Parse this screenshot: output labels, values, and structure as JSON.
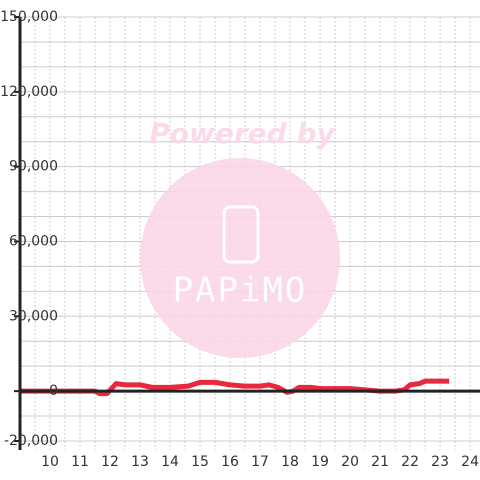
{
  "chart_data": {
    "type": "line",
    "x": [
      9.0,
      11.5,
      11.65,
      11.9,
      12.2,
      12.5,
      13.0,
      13.4,
      14.0,
      14.6,
      15.0,
      15.5,
      16.0,
      16.5,
      17.0,
      17.3,
      17.6,
      17.9,
      18.1,
      18.3,
      18.7,
      19.0,
      20.0,
      20.5,
      21.0,
      21.5,
      21.8,
      22.0,
      22.3,
      22.5,
      23.0,
      23.3
    ],
    "series": [
      {
        "color": "#e8283c",
        "values": [
          0,
          0,
          -1000,
          -1000,
          3000,
          2500,
          2500,
          1500,
          1500,
          2000,
          3500,
          3500,
          2500,
          2000,
          2000,
          2500,
          1500,
          -500,
          0,
          1500,
          1500,
          1000,
          1000,
          500,
          0,
          0,
          500,
          2500,
          3000,
          4000,
          4000,
          4000
        ]
      }
    ],
    "xlim": [
      9,
      24.33
    ],
    "xticks": [
      10,
      11,
      12,
      13,
      14,
      15,
      16,
      17,
      18,
      19,
      20,
      21,
      22,
      23,
      24
    ],
    "x_minor_ticks": [
      9.5,
      10.5,
      11.5,
      12.5,
      13.5,
      14.5,
      15.5,
      16.5,
      17.5,
      18.5,
      19.5,
      20.5,
      21.5,
      22.5,
      23.5
    ],
    "ylim": [
      -20000,
      150000
    ],
    "yticks": [
      {
        "value": -20000,
        "label": "-20,000"
      },
      0,
      {
        "value": 30000,
        "label": "30,000"
      },
      {
        "value": 60000,
        "label": "60,000"
      },
      {
        "value": 90000,
        "label": "90,000"
      },
      {
        "value": 120000,
        "label": "120,000"
      },
      {
        "value": 150000,
        "label": "150,000"
      }
    ],
    "y_minor_ticks": [
      -10000,
      10000,
      20000,
      40000,
      50000,
      70000,
      80000,
      100000,
      110000,
      130000,
      140000
    ],
    "grid": true
  },
  "watermark": {
    "caption": "Powered by",
    "logo": "PAPiMO"
  }
}
